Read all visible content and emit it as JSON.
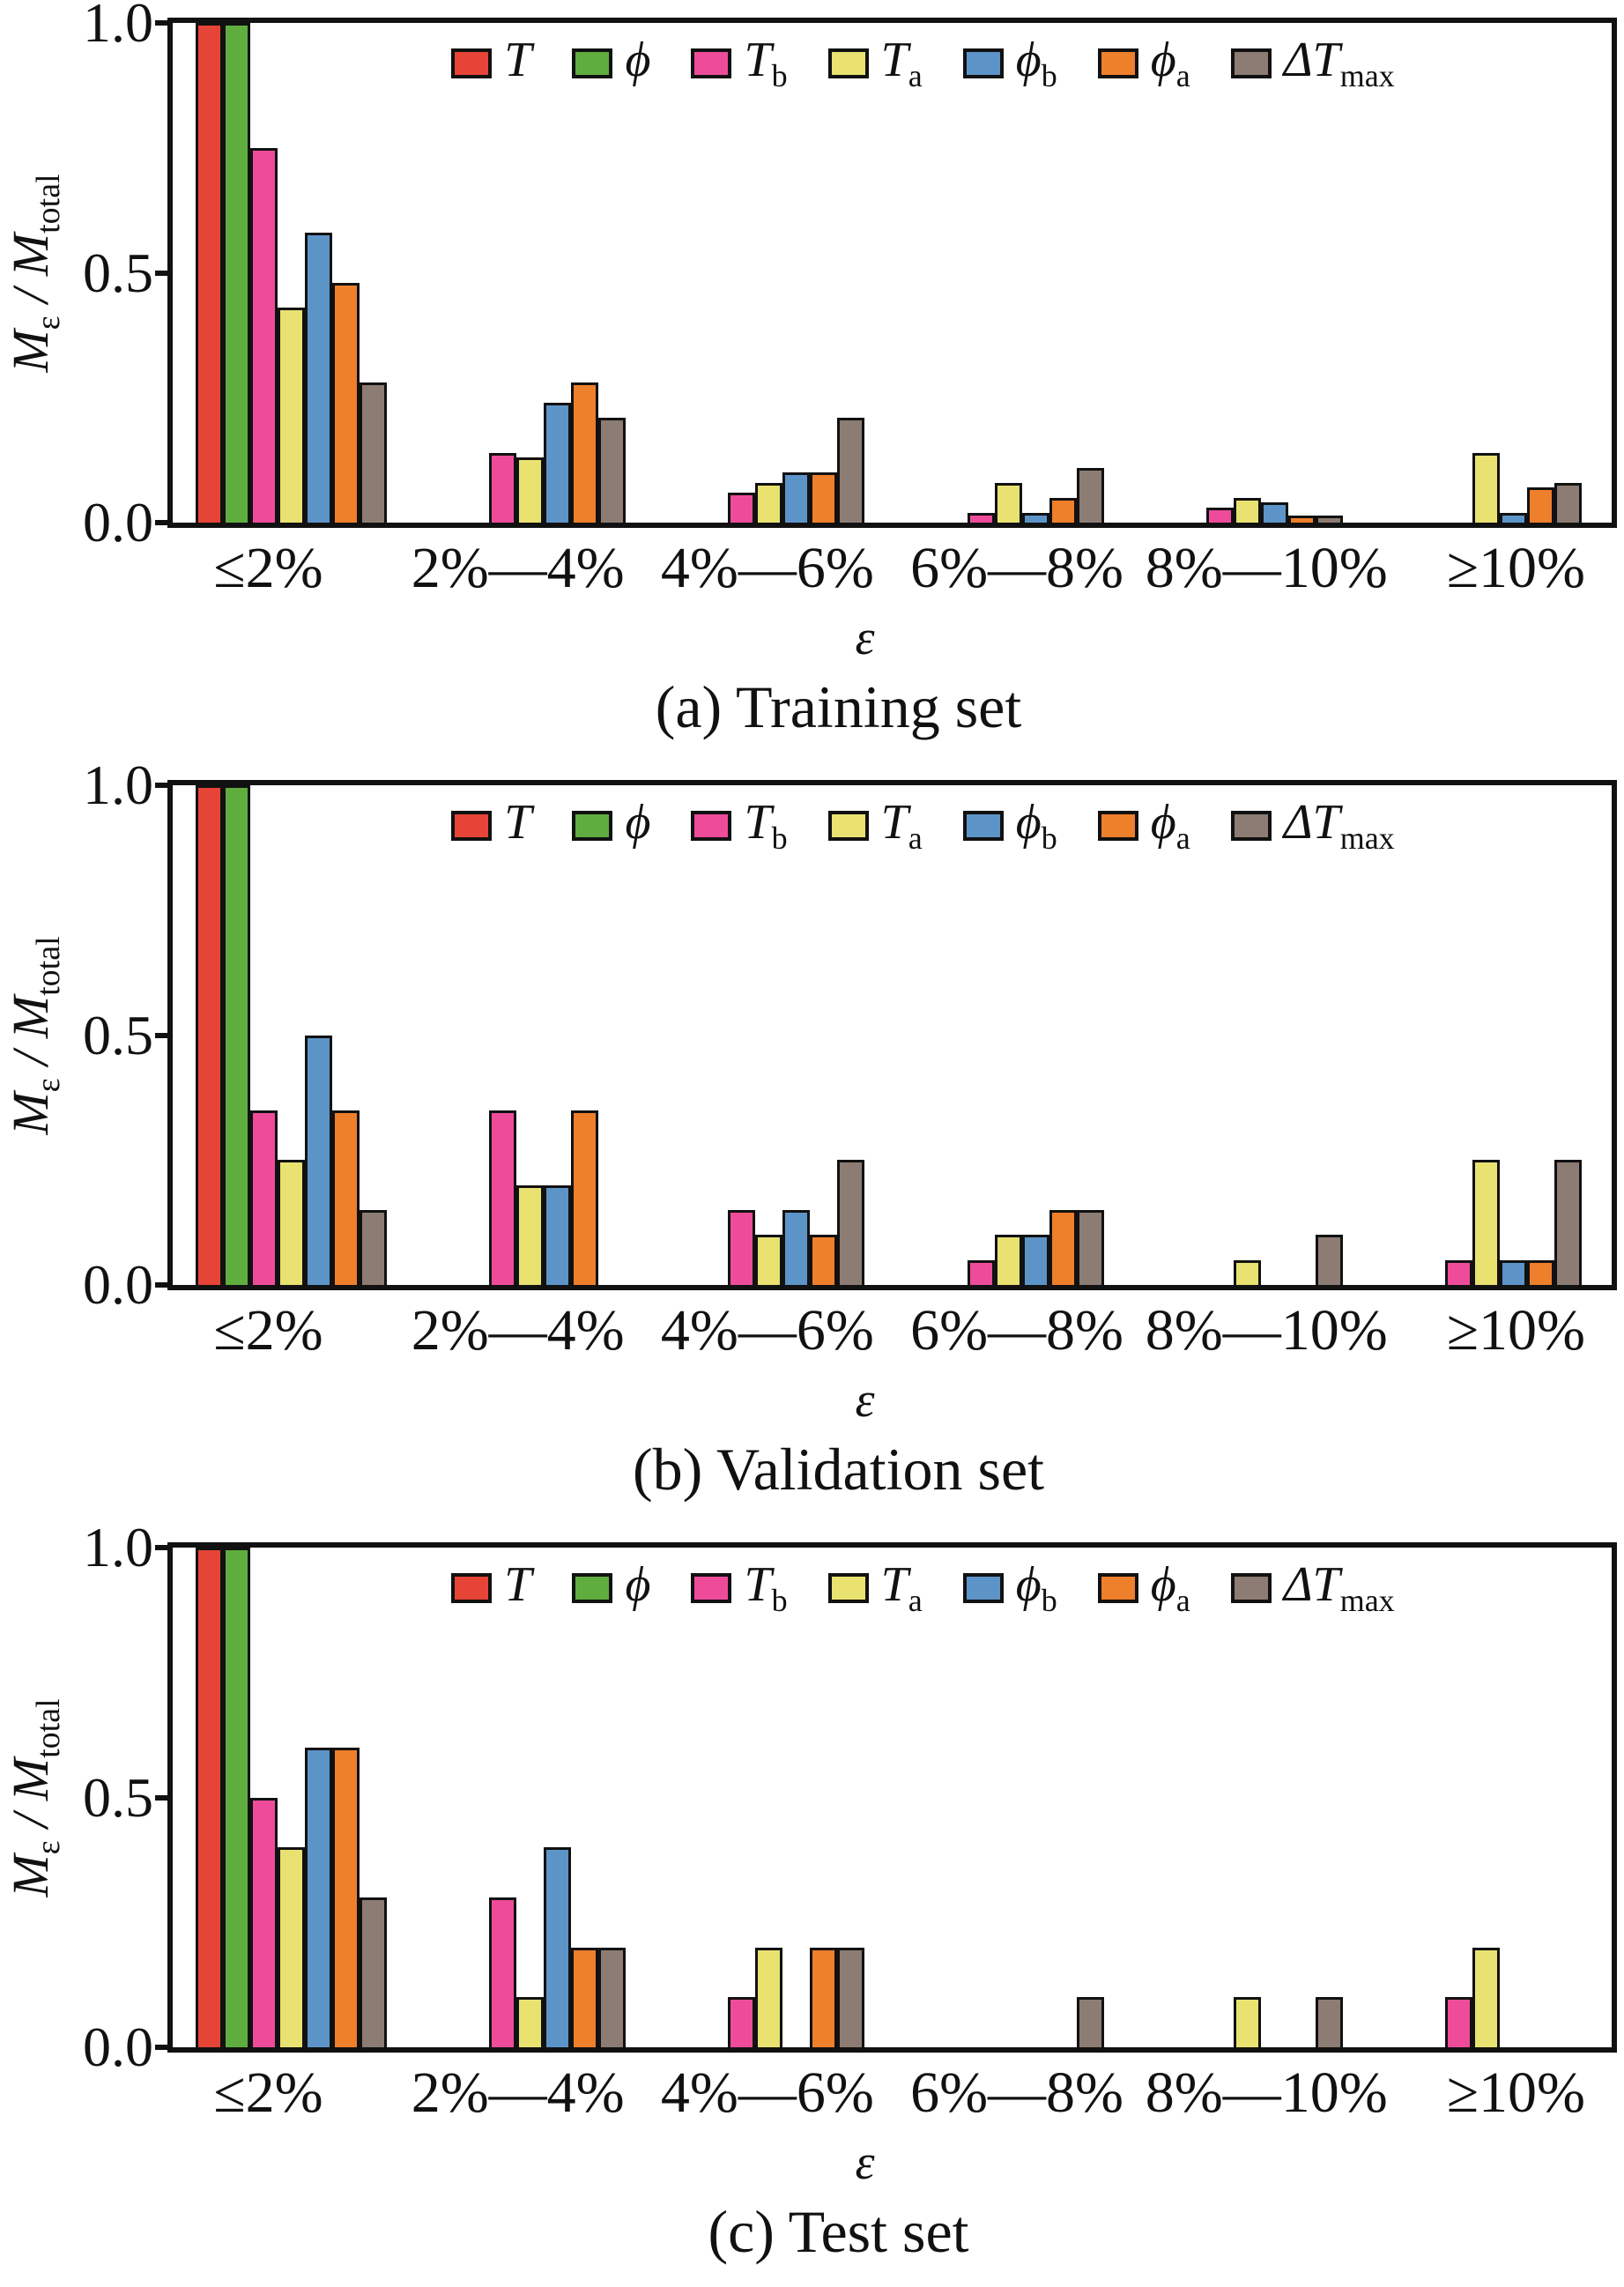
{
  "figure": {
    "yaxis": {
      "ticks": [
        "1.0",
        "0.5",
        "0.0"
      ],
      "label": {
        "m1": "M",
        "s1": "ε",
        "slash": " / ",
        "m2": "M",
        "s2": "total"
      }
    },
    "xaxis": {
      "label": "ε",
      "categories": [
        "≤2%",
        "2%—4%",
        "4%—6%",
        "6%—8%",
        "8%—10%",
        "≥10%"
      ]
    },
    "legend": [
      {
        "main": "T",
        "sub": "",
        "color": "#e64437"
      },
      {
        "main": "ϕ",
        "sub": "",
        "color": "#5fad3f"
      },
      {
        "main": "T",
        "sub": "b",
        "color": "#ee4c9b"
      },
      {
        "main": "T",
        "sub": "a",
        "color": "#e9e170"
      },
      {
        "main": "ϕ",
        "sub": "b",
        "color": "#5d94c8"
      },
      {
        "main": "ϕ",
        "sub": "a",
        "color": "#ee7f2b"
      },
      {
        "main": "ΔT",
        "sub": "max",
        "color": "#8c7c73"
      }
    ],
    "colors": {
      "axis": "#111111",
      "background": "#ffffff"
    }
  },
  "chart_data": [
    {
      "type": "bar",
      "title": "(a) Training set",
      "xlabel": "ε",
      "ylabel": "M_ε / M_total",
      "ylim": [
        0,
        1.0
      ],
      "yticks": [
        0.0,
        0.5,
        1.0
      ],
      "grid": false,
      "legend_position": "top-center-inside",
      "categories": [
        "≤2%",
        "2%—4%",
        "4%—6%",
        "6%—8%",
        "8%—10%",
        "≥10%"
      ],
      "series": [
        {
          "name": "T",
          "color": "#e64437",
          "values": [
            1.0,
            0,
            0,
            0,
            0,
            0
          ]
        },
        {
          "name": "phi",
          "color": "#5fad3f",
          "values": [
            1.0,
            0,
            0,
            0,
            0,
            0
          ]
        },
        {
          "name": "T_b",
          "color": "#ee4c9b",
          "values": [
            0.75,
            0.14,
            0.06,
            0.02,
            0.03,
            0
          ]
        },
        {
          "name": "T_a",
          "color": "#e9e170",
          "values": [
            0.43,
            0.13,
            0.08,
            0.08,
            0.05,
            0.14
          ]
        },
        {
          "name": "phi_b",
          "color": "#5d94c8",
          "values": [
            0.58,
            0.24,
            0.1,
            0.02,
            0.04,
            0.02
          ]
        },
        {
          "name": "phi_a",
          "color": "#ee7f2b",
          "values": [
            0.48,
            0.28,
            0.1,
            0.05,
            0.015,
            0.07
          ]
        },
        {
          "name": "dT_max",
          "color": "#8c7c73",
          "values": [
            0.28,
            0.21,
            0.21,
            0.11,
            0.015,
            0.08
          ]
        }
      ]
    },
    {
      "type": "bar",
      "title": "(b) Validation set",
      "xlabel": "ε",
      "ylabel": "M_ε / M_total",
      "ylim": [
        0,
        1.0
      ],
      "yticks": [
        0.0,
        0.5,
        1.0
      ],
      "grid": false,
      "legend_position": "top-center-inside",
      "categories": [
        "≤2%",
        "2%—4%",
        "4%—6%",
        "6%—8%",
        "8%—10%",
        "≥10%"
      ],
      "series": [
        {
          "name": "T",
          "color": "#e64437",
          "values": [
            1.0,
            0,
            0,
            0,
            0,
            0
          ]
        },
        {
          "name": "phi",
          "color": "#5fad3f",
          "values": [
            1.0,
            0,
            0,
            0,
            0,
            0
          ]
        },
        {
          "name": "T_b",
          "color": "#ee4c9b",
          "values": [
            0.35,
            0.35,
            0.15,
            0.05,
            0,
            0.05
          ]
        },
        {
          "name": "T_a",
          "color": "#e9e170",
          "values": [
            0.25,
            0.2,
            0.1,
            0.1,
            0.05,
            0.25
          ]
        },
        {
          "name": "phi_b",
          "color": "#5d94c8",
          "values": [
            0.5,
            0.2,
            0.15,
            0.1,
            0,
            0.05
          ]
        },
        {
          "name": "phi_a",
          "color": "#ee7f2b",
          "values": [
            0.35,
            0.35,
            0.1,
            0.15,
            0,
            0.05
          ]
        },
        {
          "name": "dT_max",
          "color": "#8c7c73",
          "values": [
            0.15,
            0,
            0.25,
            0.15,
            0.1,
            0.25
          ]
        }
      ]
    },
    {
      "type": "bar",
      "title": "(c) Test set",
      "xlabel": "ε",
      "ylabel": "M_ε / M_total",
      "ylim": [
        0,
        1.0
      ],
      "yticks": [
        0.0,
        0.5,
        1.0
      ],
      "grid": false,
      "legend_position": "top-center-inside",
      "categories": [
        "≤2%",
        "2%—4%",
        "4%—6%",
        "6%—8%",
        "8%—10%",
        "≥10%"
      ],
      "series": [
        {
          "name": "T",
          "color": "#e64437",
          "values": [
            1.0,
            0,
            0,
            0,
            0,
            0
          ]
        },
        {
          "name": "phi",
          "color": "#5fad3f",
          "values": [
            1.0,
            0,
            0,
            0,
            0,
            0
          ]
        },
        {
          "name": "T_b",
          "color": "#ee4c9b",
          "values": [
            0.5,
            0.3,
            0.1,
            0,
            0,
            0.1
          ]
        },
        {
          "name": "T_a",
          "color": "#e9e170",
          "values": [
            0.4,
            0.1,
            0.2,
            0,
            0.1,
            0.2
          ]
        },
        {
          "name": "phi_b",
          "color": "#5d94c8",
          "values": [
            0.6,
            0.4,
            0,
            0,
            0,
            0
          ]
        },
        {
          "name": "phi_a",
          "color": "#ee7f2b",
          "values": [
            0.6,
            0.2,
            0.2,
            0,
            0,
            0
          ]
        },
        {
          "name": "dT_max",
          "color": "#8c7c73",
          "values": [
            0.3,
            0.2,
            0.2,
            0.1,
            0.1,
            0
          ]
        }
      ]
    }
  ]
}
